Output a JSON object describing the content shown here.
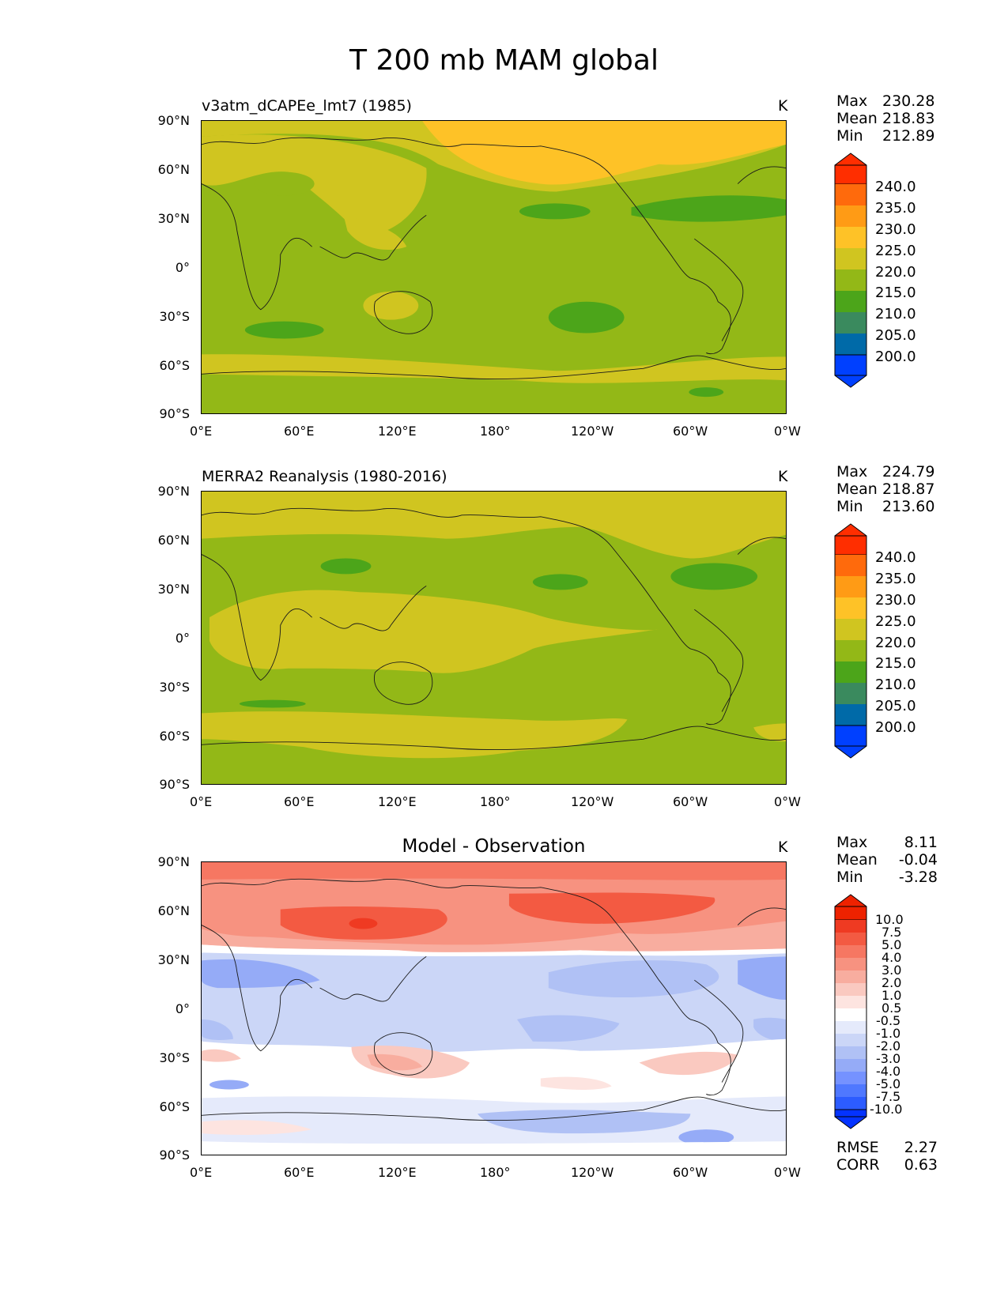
{
  "figure": {
    "title": "T 200 mb MAM global"
  },
  "axes": {
    "lat_ticks": [
      "90°N",
      "60°N",
      "30°N",
      "0°",
      "30°S",
      "60°S",
      "90°S"
    ],
    "lon_ticks": [
      "0°E",
      "60°E",
      "120°E",
      "180°",
      "120°W",
      "60°W",
      "0°W"
    ]
  },
  "panels": [
    {
      "title": "v3atm_dCAPEe_lmt7 (1985)",
      "units": "K",
      "stats": [
        {
          "label": "Max",
          "value": "230.28"
        },
        {
          "label": "Mean",
          "value": "218.83"
        },
        {
          "label": "Min",
          "value": "212.89"
        }
      ],
      "colorbar_labels": [
        "240.0",
        "235.0",
        "230.0",
        "225.0",
        "220.0",
        "215.0",
        "210.0",
        "205.0",
        "200.0"
      ]
    },
    {
      "title": "MERRA2 Reanalysis (1980-2016)",
      "units": "K",
      "stats": [
        {
          "label": "Max",
          "value": "224.79"
        },
        {
          "label": "Mean",
          "value": "218.87"
        },
        {
          "label": "Min",
          "value": "213.60"
        }
      ],
      "colorbar_labels": [
        "240.0",
        "235.0",
        "230.0",
        "225.0",
        "220.0",
        "215.0",
        "210.0",
        "205.0",
        "200.0"
      ]
    },
    {
      "title": "Model - Observation",
      "units": "K",
      "stats": [
        {
          "label": "Max",
          "value": "8.11"
        },
        {
          "label": "Mean",
          "value": "-0.04"
        },
        {
          "label": "Min",
          "value": "-3.28"
        }
      ],
      "colorbar_labels": [
        "10.0",
        "7.5",
        "5.0",
        "4.0",
        "3.0",
        "2.0",
        "1.0",
        "0.5",
        "-0.5",
        "-1.0",
        "-2.0",
        "-3.0",
        "-4.0",
        "-5.0",
        "-7.5",
        "-10.0"
      ],
      "metrics": [
        {
          "label": "RMSE",
          "value": "2.27"
        },
        {
          "label": "CORR",
          "value": "0.63"
        }
      ]
    }
  ],
  "colors": {
    "abs_scale": [
      "#0040ff",
      "#006aa8",
      "#3a8a5e",
      "#4ca51a",
      "#93b817",
      "#d0c520",
      "#fec227",
      "#ff9b15",
      "#ff6a0c",
      "#ff2e00"
    ],
    "diff_scale": [
      "#0433ff",
      "#2c5cff",
      "#4f78ff",
      "#7592ff",
      "#95abf7",
      "#b0c1f5",
      "#cbd6f7",
      "#e5eafb",
      "#ffffff",
      "#fde4e0",
      "#fac9c0",
      "#f8ad9f",
      "#f79280",
      "#f67762",
      "#f35a42",
      "#ef3a22",
      "#ee2200"
    ]
  }
}
